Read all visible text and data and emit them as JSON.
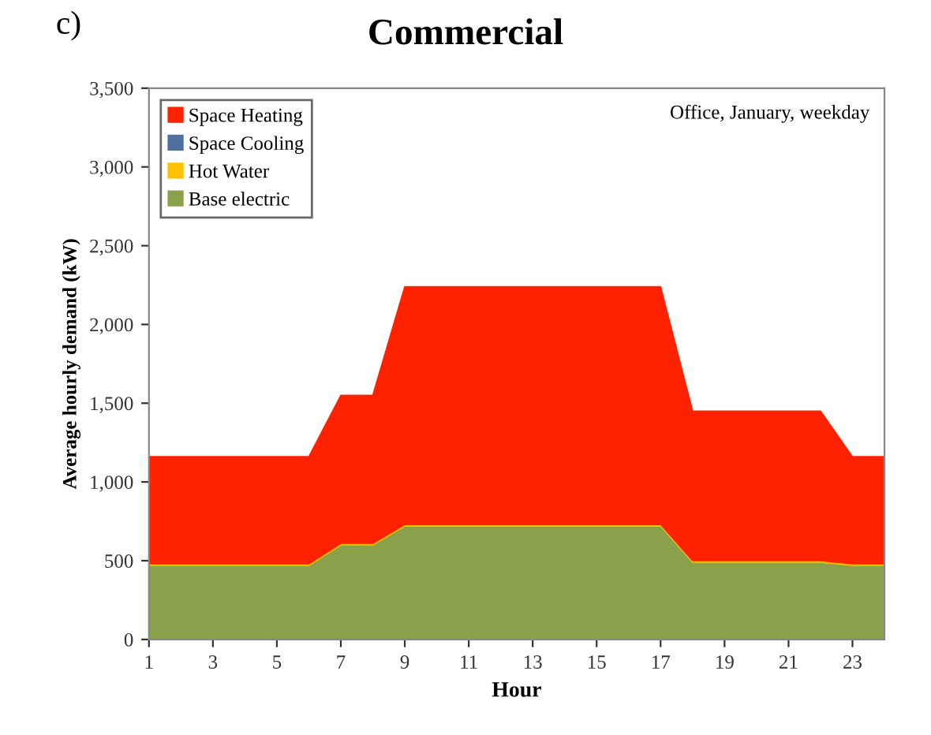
{
  "chart_data": {
    "type": "area",
    "stacked": true,
    "title": "Commercial",
    "annotations": [
      "c)",
      "Office, January, weekday"
    ],
    "xlabel": "Hour",
    "ylabel": "Average hourly demand (kW)",
    "x": [
      1,
      2,
      3,
      4,
      5,
      6,
      7,
      8,
      9,
      10,
      11,
      12,
      13,
      14,
      15,
      16,
      17,
      18,
      19,
      20,
      21,
      22,
      23,
      24
    ],
    "series": [
      {
        "name": "Base electric",
        "color": "#8aa04a",
        "values": [
          470,
          470,
          470,
          470,
          470,
          470,
          600,
          600,
          720,
          720,
          720,
          720,
          720,
          720,
          720,
          720,
          720,
          490,
          490,
          490,
          490,
          490,
          470,
          470
        ]
      },
      {
        "name": "Hot Water",
        "color": "#ffc000",
        "values": [
          10,
          10,
          10,
          10,
          10,
          10,
          10,
          10,
          10,
          10,
          10,
          10,
          10,
          10,
          10,
          10,
          10,
          10,
          10,
          10,
          10,
          10,
          10,
          10
        ]
      },
      {
        "name": "Space Cooling",
        "color": "#4f6f9f",
        "values": [
          null,
          null,
          null,
          null,
          null,
          null,
          null,
          null,
          null,
          null,
          null,
          null,
          null,
          null,
          null,
          null,
          null,
          null,
          null,
          null,
          null,
          null,
          null,
          null
        ]
      },
      {
        "name": "Space Heating",
        "color": "#ff2200",
        "values": [
          680,
          680,
          680,
          680,
          680,
          680,
          940,
          940,
          1510,
          1510,
          1510,
          1510,
          1510,
          1510,
          1510,
          1510,
          1510,
          950,
          950,
          950,
          950,
          950,
          680,
          680
        ]
      }
    ],
    "xlim": [
      1,
      24
    ],
    "xticks": [
      1,
      3,
      5,
      7,
      9,
      11,
      13,
      15,
      17,
      19,
      21,
      23
    ],
    "ylim": [
      0,
      3500
    ],
    "yticks": [
      {
        "value": 0,
        "label": "0"
      },
      {
        "value": 500,
        "label": "500"
      },
      {
        "value": 1000,
        "label": "1,000"
      },
      {
        "value": 1500,
        "label": "1,500"
      },
      {
        "value": 2000,
        "label": "2,000"
      },
      {
        "value": 2500,
        "label": "2,500"
      },
      {
        "value": 3000,
        "label": "3,000"
      },
      {
        "value": 3500,
        "label": "3,500"
      }
    ],
    "grid": false,
    "legend": "top left"
  }
}
